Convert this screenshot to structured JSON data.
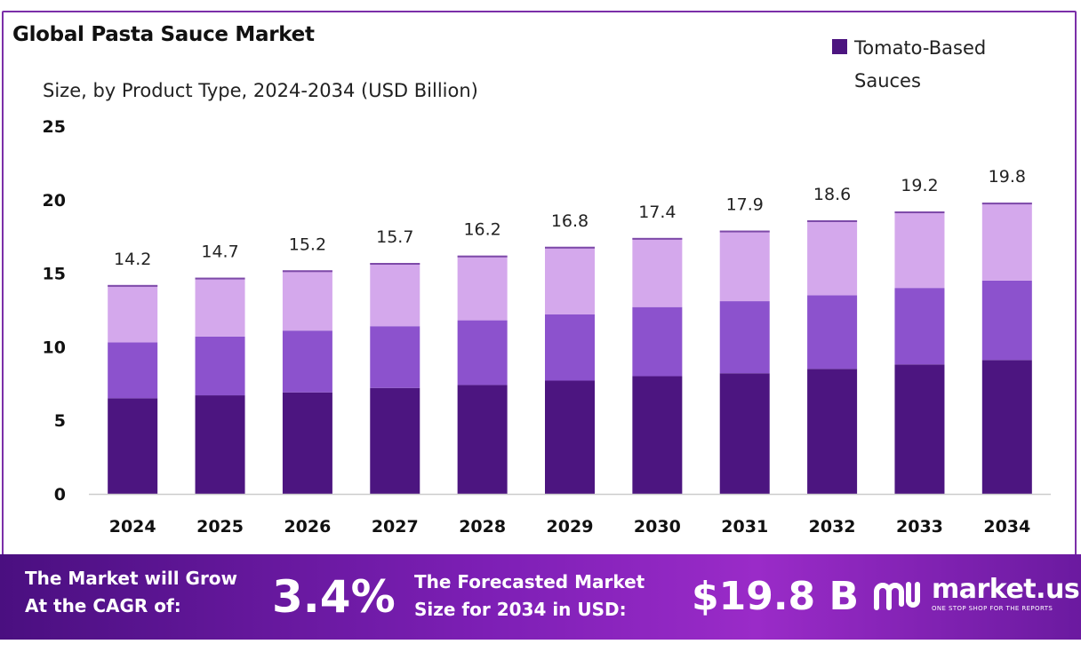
{
  "header": {
    "title": "Global Pasta Sauce Market",
    "subtitle": "Size, by Product Type, 2024-2034 (USD Billion)"
  },
  "legend": {
    "label_line1": "Tomato-Based",
    "label_line2": "Sauces",
    "color": "#4c1580"
  },
  "colors": {
    "series_dark": "#4c1580",
    "series_mid": "#8c52cd",
    "series_light": "#d4a8ec",
    "axis": "#cccccc",
    "border": "#7b2fa8"
  },
  "chart_data": {
    "type": "bar",
    "stacked": true,
    "categories": [
      "2024",
      "2025",
      "2026",
      "2027",
      "2028",
      "2029",
      "2030",
      "2031",
      "2032",
      "2033",
      "2034"
    ],
    "totals": [
      14.2,
      14.7,
      15.2,
      15.7,
      16.2,
      16.8,
      17.4,
      17.9,
      18.6,
      19.2,
      19.8
    ],
    "total_labels": [
      "14.2",
      "14.7",
      "15.2",
      "15.7",
      "16.2",
      "16.8",
      "17.4",
      "17.9",
      "18.6",
      "19.2",
      "19.8"
    ],
    "series": [
      {
        "name": "Tomato-Based Sauces",
        "color": "#4c1580",
        "values": [
          6.5,
          6.7,
          6.9,
          7.2,
          7.4,
          7.7,
          8.0,
          8.2,
          8.5,
          8.8,
          9.1
        ]
      },
      {
        "color": "#8c52cd",
        "values": [
          3.8,
          4.0,
          4.2,
          4.2,
          4.4,
          4.5,
          4.7,
          4.9,
          5.0,
          5.2,
          5.4
        ]
      },
      {
        "color": "#d4a8ec",
        "values": [
          3.9,
          4.0,
          4.1,
          4.3,
          4.4,
          4.6,
          4.7,
          4.8,
          5.1,
          5.2,
          5.3
        ]
      }
    ],
    "yticks": [
      "0",
      "5",
      "10",
      "15",
      "20",
      "25"
    ],
    "ylim": [
      0,
      25
    ],
    "grid": false,
    "legend_position": "top-right"
  },
  "banner": {
    "cagr_line1": "The Market will Grow",
    "cagr_line2": "At the CAGR of:",
    "cagr_value": "3.4%",
    "forecast_line1": "The Forecasted Market",
    "forecast_line2": "Size for 2034 in USD:",
    "forecast_value": "$19.8 B",
    "brand_name": "market.us",
    "brand_tagline": "ONE STOP SHOP FOR THE REPORTS"
  }
}
